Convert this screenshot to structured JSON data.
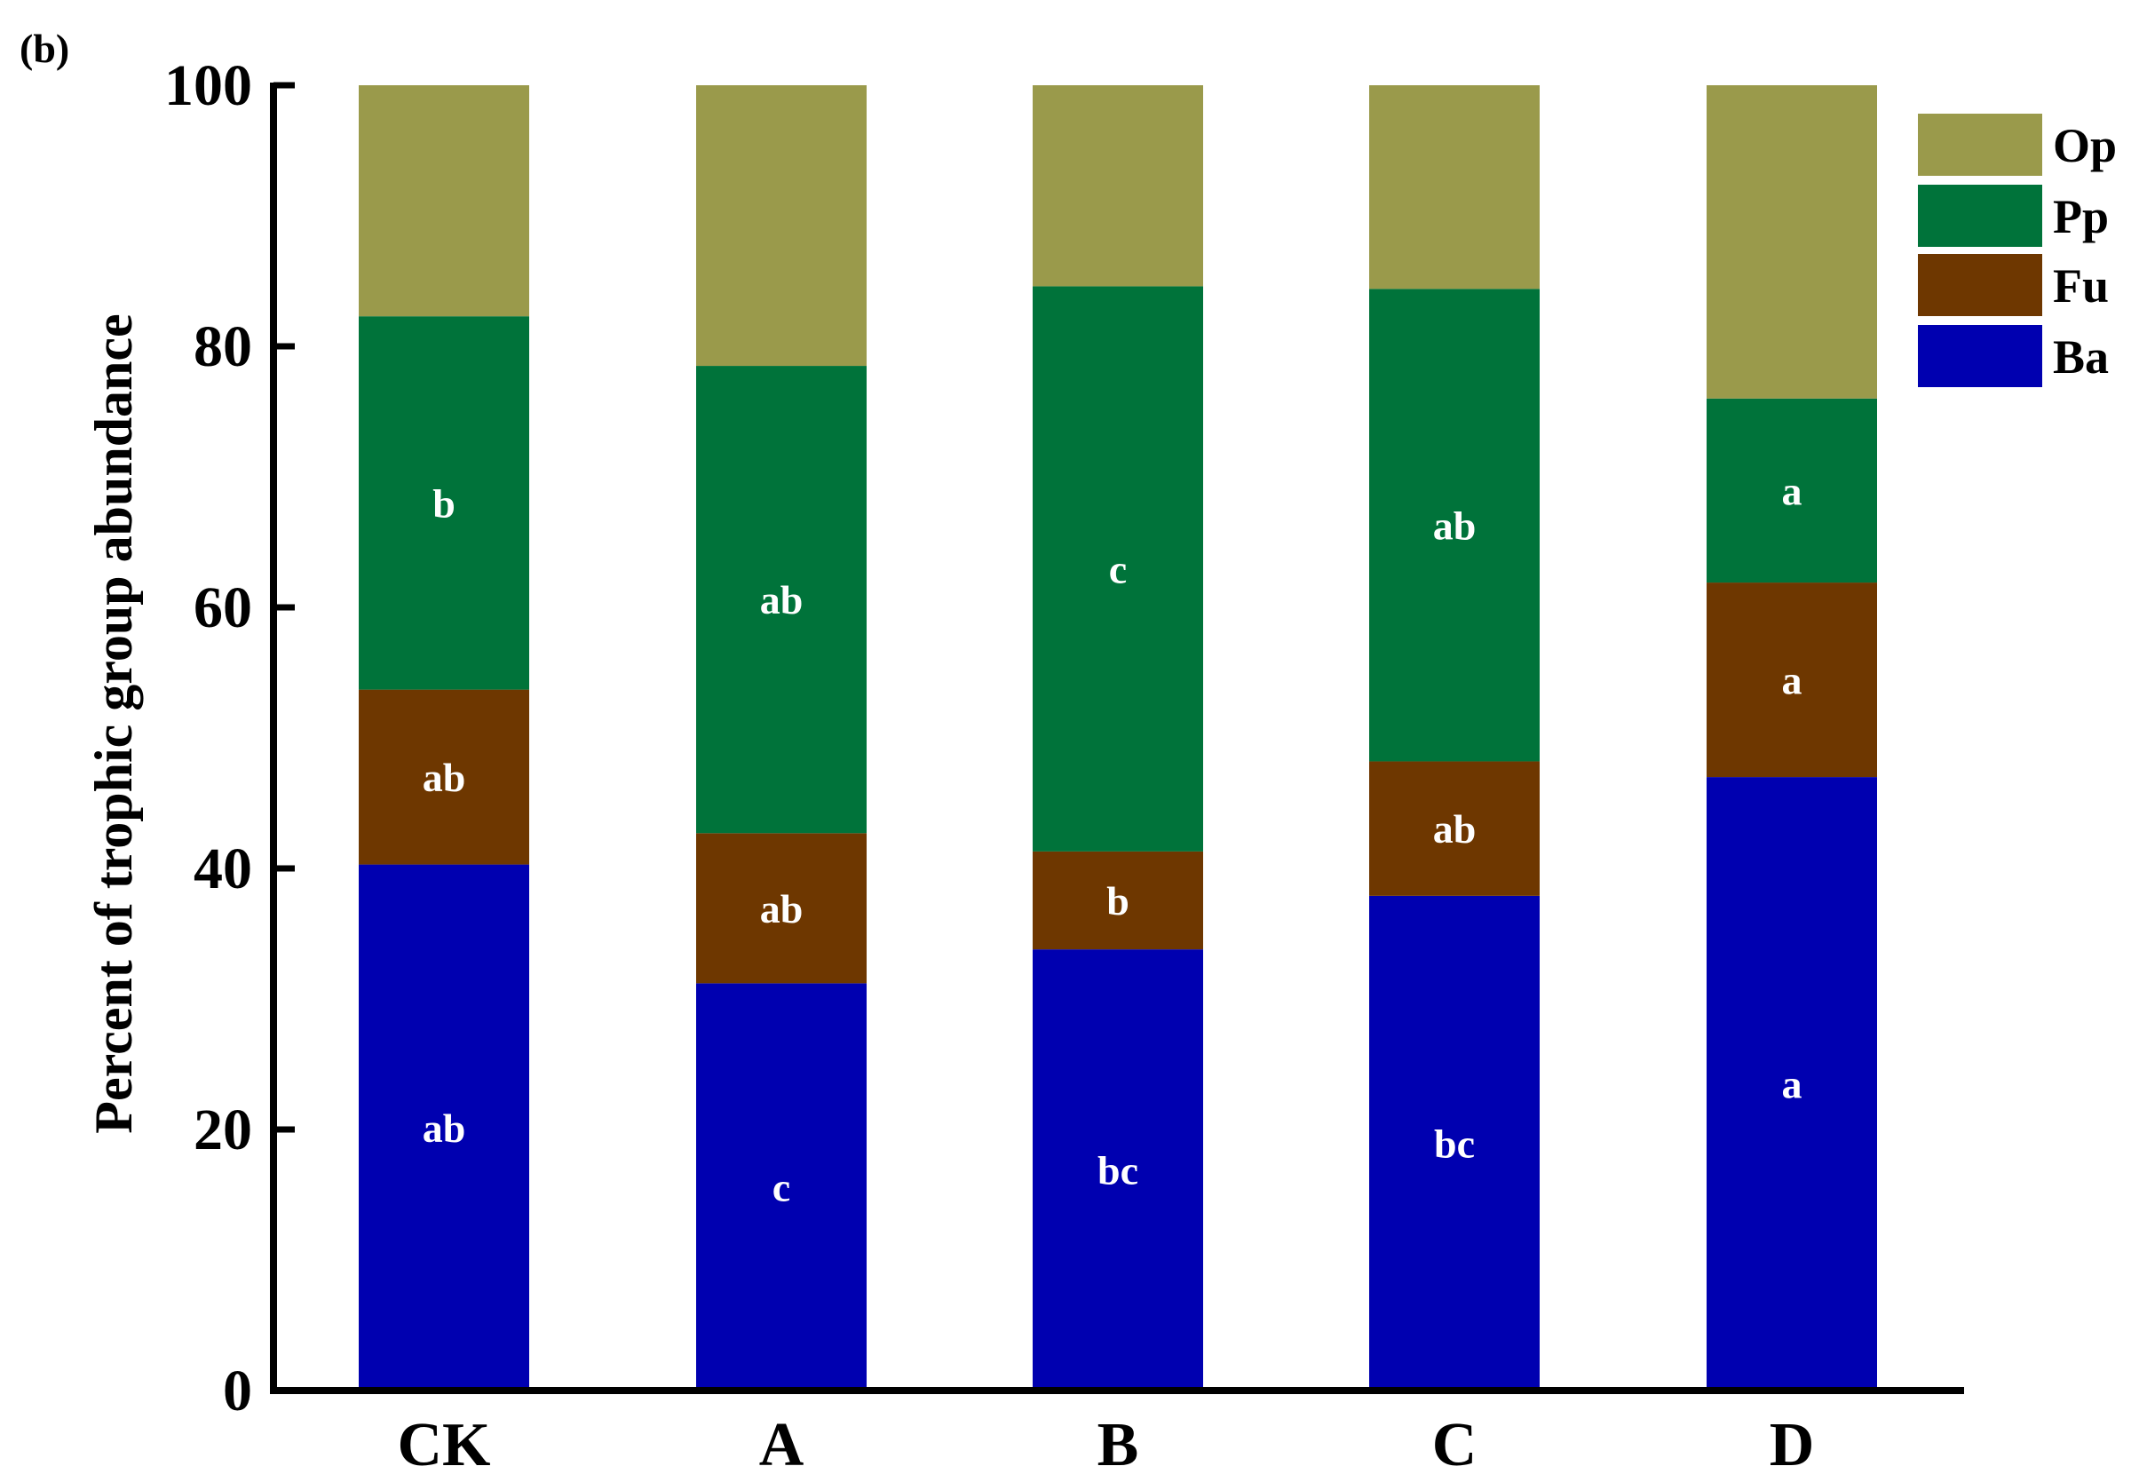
{
  "panel_label": "(b)",
  "chart_data": {
    "type": "bar",
    "stacked": true,
    "title": "",
    "xlabel": "",
    "ylabel": "Percent of trophic group abundance",
    "ylim": [
      0,
      100
    ],
    "yticks": [
      0,
      20,
      40,
      60,
      80,
      100
    ],
    "categories": [
      "CK",
      "A",
      "B",
      "C",
      "D"
    ],
    "legend_position": "top-right",
    "grid": false,
    "series": [
      {
        "name": "Ba",
        "color": "#0000b0",
        "values": [
          40.3,
          31.2,
          33.8,
          37.9,
          47.0
        ],
        "labels": [
          "ab",
          "c",
          "bc",
          "bc",
          "a"
        ]
      },
      {
        "name": "Fu",
        "color": "#6e3700",
        "values": [
          13.4,
          11.5,
          7.5,
          10.3,
          14.9
        ],
        "labels": [
          "ab",
          "ab",
          "b",
          "ab",
          "a"
        ]
      },
      {
        "name": "Pp",
        "color": "#00733a",
        "values": [
          28.6,
          35.8,
          43.3,
          36.2,
          14.1
        ],
        "labels": [
          "b",
          "ab",
          "c",
          "ab",
          "a"
        ]
      },
      {
        "name": "Op",
        "color": "#9a9a4b",
        "values": [
          17.7,
          21.5,
          15.4,
          15.6,
          24.0
        ],
        "labels": [
          "",
          "",
          "",
          "",
          ""
        ]
      }
    ]
  }
}
